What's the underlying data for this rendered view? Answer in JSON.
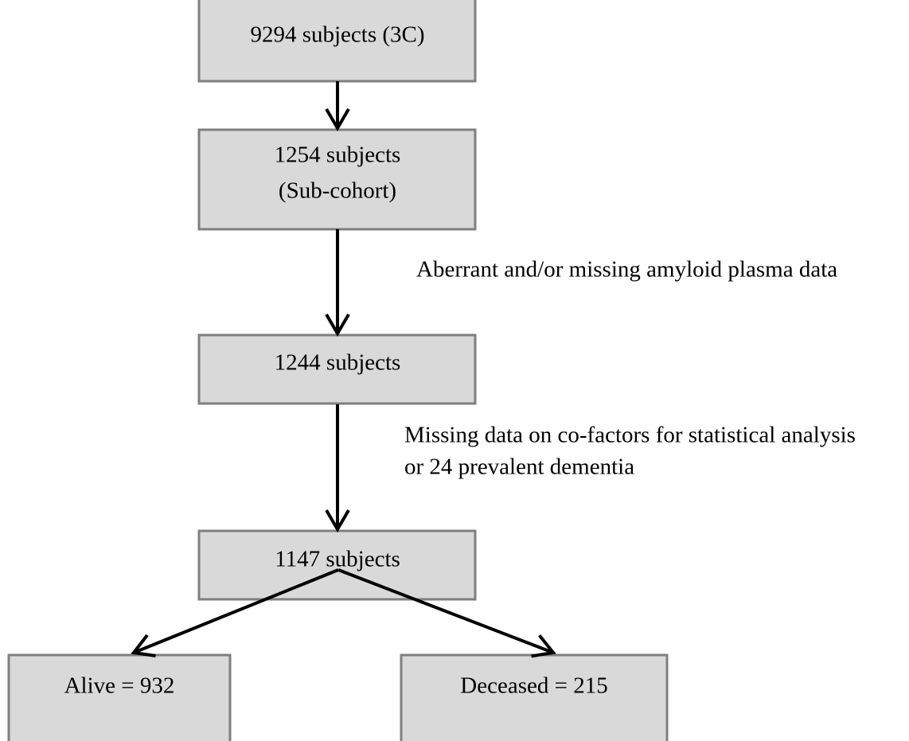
{
  "nodes": [
    {
      "lines": [
        "9294 subjects (3C)"
      ]
    },
    {
      "lines": [
        "1254 subjects",
        "(Sub-cohort)"
      ]
    },
    {
      "lines": [
        "1244 subjects"
      ]
    },
    {
      "lines": [
        "1147 subjects"
      ]
    },
    {
      "lines": [
        "Alive = 932"
      ]
    },
    {
      "lines": [
        "Deceased = 215"
      ]
    }
  ],
  "annotations": [
    {
      "lines": [
        "Aberrant and/or missing amyloid plasma data"
      ]
    },
    {
      "lines": [
        "Missing data on co-factors for statistical analysis",
        "or 24 prevalent dementia"
      ]
    }
  ]
}
